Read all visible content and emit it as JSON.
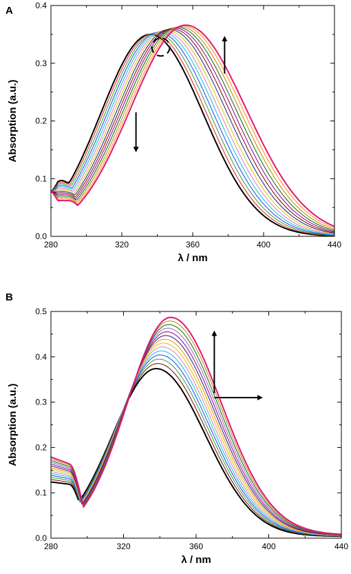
{
  "chart_data": [
    {
      "type": "line",
      "panel": "A",
      "xlabel": "λ / nm",
      "ylabel": "Absorption (a.u.)",
      "xlim": [
        280,
        440
      ],
      "ylim": [
        0.0,
        0.4
      ],
      "xticks": [
        "280",
        "320",
        "360",
        "400",
        "440"
      ],
      "yticks": [
        "0.0",
        "0.1",
        "0.2",
        "0.3",
        "0.4"
      ],
      "grid": false,
      "isosbestic_point_x": 342,
      "first_spectrum": {
        "peak_x": 336,
        "peak_y": 0.35,
        "shoulder_y": 0.092,
        "end_y": 0.076
      },
      "last_spectrum": {
        "peak_x": 356,
        "peak_y": 0.366,
        "shoulder_y": 0.062,
        "end_y": 0.08
      },
      "series_count": 14,
      "colors": [
        "#000000",
        "#e41a1c",
        "#2ca02c",
        "#1f3cff",
        "#00c8d0",
        "#e377c2",
        "#d4c800",
        "#1a1a80",
        "#7f0000",
        "#8b008b",
        "#006400",
        "#b8860b",
        "#ff8c00",
        "#e0157a"
      ],
      "arrows": [
        {
          "direction": "down"
        },
        {
          "direction": "up"
        }
      ]
    },
    {
      "type": "line",
      "panel": "B",
      "xlabel": "λ / nm",
      "ylabel": "Absorption (a.u.)",
      "xlim": [
        280,
        440
      ],
      "ylim": [
        0.0,
        0.5
      ],
      "xticks": [
        "280",
        "320",
        "360",
        "400",
        "440"
      ],
      "yticks": [
        "0.0",
        "0.1",
        "0.2",
        "0.3",
        "0.4",
        "0.5"
      ],
      "grid": false,
      "first_spectrum": {
        "peak_x": 338,
        "peak_y": 0.37,
        "start_y": 0.12,
        "min_y": 0.115
      },
      "last_spectrum": {
        "peak_x": 346,
        "peak_y": 0.483,
        "start_y": 0.175,
        "min_y": 0.16
      },
      "series_count": 14,
      "colors": [
        "#000000",
        "#7f0000",
        "#2ca02c",
        "#1f3cff",
        "#00c8d0",
        "#e377c2",
        "#d4c800",
        "#ff8c00",
        "#1a1a80",
        "#8b008b",
        "#9467bd",
        "#006400",
        "#b8860b",
        "#e0157a"
      ],
      "arrows": [
        {
          "direction": "up"
        },
        {
          "direction": "right"
        }
      ]
    }
  ]
}
